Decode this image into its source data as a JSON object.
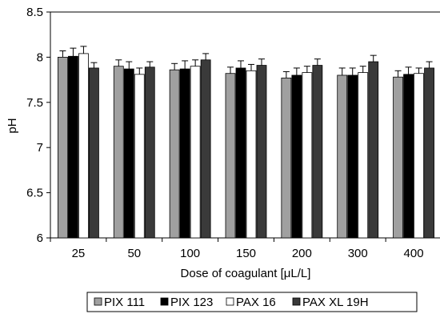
{
  "chart_data": {
    "type": "bar",
    "xlabel": "Dose of coagulant  [μL/L]",
    "ylabel": "pH",
    "ylim": [
      6,
      8.5
    ],
    "yticks": [
      "6",
      "6.5",
      "7",
      "7.5",
      "8",
      "8.5"
    ],
    "categories": [
      "25",
      "50",
      "100",
      "150",
      "200",
      "300",
      "400"
    ],
    "grid": false,
    "legend_position": "bottom",
    "series": [
      {
        "name": "PIX 111",
        "color": "#a0a0a0",
        "values": [
          8.0,
          7.9,
          7.86,
          7.82,
          7.77,
          7.8,
          7.78
        ],
        "errors": [
          0.07,
          0.07,
          0.07,
          0.07,
          0.07,
          0.08,
          0.07
        ]
      },
      {
        "name": "PIX 123",
        "color": "#000000",
        "values": [
          8.01,
          7.87,
          7.87,
          7.88,
          7.8,
          7.8,
          7.81
        ],
        "errors": [
          0.09,
          0.08,
          0.09,
          0.08,
          0.08,
          0.08,
          0.08
        ]
      },
      {
        "name": "PAX 16",
        "color": "#ffffff",
        "values": [
          8.04,
          7.81,
          7.9,
          7.85,
          7.83,
          7.83,
          7.82
        ],
        "errors": [
          0.08,
          0.07,
          0.07,
          0.07,
          0.07,
          0.07,
          0.06
        ]
      },
      {
        "name": "PAX XL 19H",
        "color": "#3a3a3a",
        "values": [
          7.88,
          7.89,
          7.97,
          7.91,
          7.91,
          7.95,
          7.88
        ],
        "errors": [
          0.06,
          0.06,
          0.07,
          0.07,
          0.07,
          0.07,
          0.07
        ]
      }
    ]
  }
}
